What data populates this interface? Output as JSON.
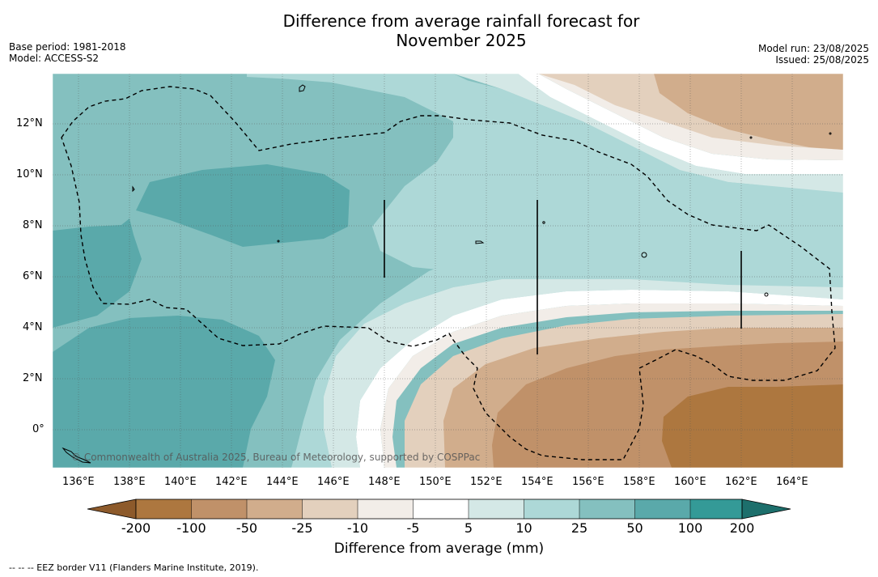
{
  "title_line1": "Difference from average rainfall forecast for",
  "title_line2": "November 2025",
  "base_period": "Base period: 1981-2018",
  "model": "Model: ACCESS-S2",
  "model_run": "Model run: 23/08/2025",
  "issued": "Issued: 25/08/2025",
  "credit": "© Commonwealth of Australia 2025, Bureau of Meteorology, supported by COSPPac",
  "footnote": "-- -- -- EEZ border V11 (Flanders Marine Institute, 2019).",
  "lon_labels": [
    "136°E",
    "138°E",
    "140°E",
    "142°E",
    "144°E",
    "146°E",
    "148°E",
    "150°E",
    "152°E",
    "154°E",
    "156°E",
    "158°E",
    "160°E",
    "162°E",
    "164°E"
  ],
  "lat_labels": [
    "12°N",
    "10°N",
    "8°N",
    "6°N",
    "4°N",
    "2°N",
    "0°"
  ],
  "colorbar": {
    "labels": [
      "-200",
      "-100",
      "-50",
      "-25",
      "-10",
      "-5",
      "5",
      "10",
      "25",
      "50",
      "100",
      "200"
    ],
    "colors": [
      "#8d5a2b",
      "#ad773f",
      "#c09169",
      "#d1ad8c",
      "#e3d0bd",
      "#f2ede8",
      "#ffffff",
      "#d4e8e6",
      "#add8d7",
      "#84c0bf",
      "#5aa9aa",
      "#349a97",
      "#1d6f6c"
    ],
    "title": "Difference from average (mm)"
  },
  "colors": {
    "dry_strong": "#ad773f",
    "dry_mid": "#c09169",
    "dry_light": "#d1ad8c",
    "dry_pale": "#e3d0bd",
    "dry_faint": "#f2ede8",
    "neutral": "#ffffff",
    "wet_faint": "#d4e8e6",
    "wet_light": "#add8d7",
    "wet_mid": "#84c0bf",
    "wet_strong": "#5aa9aa"
  }
}
